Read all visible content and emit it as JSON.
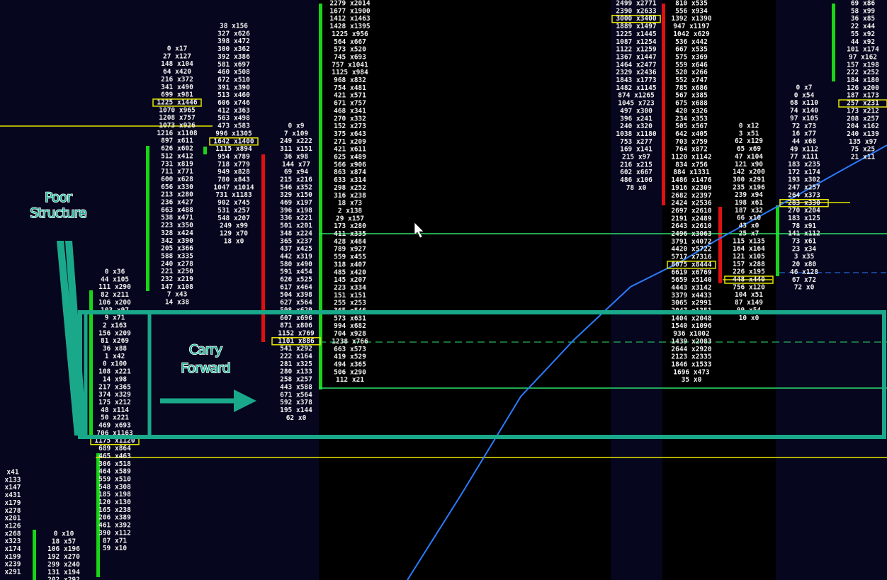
{
  "annotations": [
    "Poor\nStructure",
    "Carry\nForward"
  ],
  "columns": [
    {
      "cells": [
        "0 x17",
        "27 x127",
        "148 x104",
        "64 x420",
        "216 x372",
        "341 x490",
        "699 x981",
        "1225 x1446",
        "1070 x965",
        "1208 x757",
        "1073 x926",
        "1216 x1108",
        "897 x611",
        "626 x602",
        "512 x412",
        "731 x819",
        "711 x771",
        "600 x628",
        "656 x330",
        "213 x280",
        "236 x427",
        "663 x488",
        "538 x471",
        "223 x350",
        "328 x424",
        "342 x390",
        "205 x366",
        "588 x335",
        "240 x278",
        "221 x250",
        "232 x219",
        "147 x108",
        "7 x43",
        "14 x38"
      ]
    },
    {
      "cells": [
        "38 x156",
        "327 x626",
        "398 x472",
        "300 x362",
        "392 x386",
        "581 x697",
        "460 x508",
        "672 x510",
        "391 x390",
        "513 x460",
        "606 x746",
        "412 x363",
        "563 x498",
        "473 x583",
        "996 x1305",
        "1642 x1400",
        "1115 x894",
        "954 x789",
        "718 x779",
        "949 x828",
        "780 x843",
        "1047 x1014",
        "731 x1183",
        "902 x745",
        "531 x257",
        "548 x207",
        "249 x99",
        "129 x70",
        "18 x0"
      ]
    },
    {
      "cells": [
        "0 x9",
        "7 x109",
        "249 x222",
        "311 x151",
        "36 x98",
        "144 x77",
        "69 x94",
        "215 x216",
        "546 x352",
        "329 x150",
        "469 x197",
        "396 x198",
        "336 x221",
        "501 x201",
        "348 x224",
        "365 x237",
        "437 x425",
        "442 x319",
        "580 x490",
        "591 x454",
        "626 x525",
        "617 x464",
        "504 x398",
        "627 x564",
        "598 x629",
        "607 x696",
        "871 x806",
        "1152 x769",
        "1101 x886",
        "541 x292",
        "222 x164",
        "281 x325",
        "280 x133",
        "258 x257",
        "443 x588",
        "671 x564",
        "592 x378",
        "195 x144",
        "62 x0"
      ]
    },
    {
      "cells": [
        "2279 x2014",
        "1677 x1900",
        "1412 x1463",
        "1428 x1395",
        "1225 x956",
        "564 x667",
        "573 x520",
        "745 x693",
        "757 x1041",
        "1125 x984",
        "968 x832",
        "754 x481",
        "421 x571",
        "671 x757",
        "468 x341",
        "270 x332",
        "152 x273",
        "375 x643",
        "271 x209",
        "421 x611",
        "625 x489",
        "566 x906",
        "863 x874",
        "633 x314",
        "298 x252",
        "316 x238",
        "18 x73",
        "2 x138",
        "29 x157",
        "173 x280",
        "411 x335",
        "428 x484",
        "789 x927",
        "559 x455",
        "318 x407",
        "485 x420",
        "145 x207",
        "223 x334",
        "151 x151",
        "255 x253",
        "365 x546",
        "573 x631",
        "994 x682",
        "704 x928",
        "1238 x766",
        "663 x573",
        "419 x529",
        "494 x365",
        "506 x290",
        "112 x21"
      ]
    },
    {
      "cells": [
        "0 x36",
        "44 x105",
        "111 x290",
        "82 x211",
        "106 x200",
        "103 x97",
        "9 x71",
        "2 x163",
        "156 x209",
        "81 x269",
        "36 x88",
        "1 x42",
        "0 x100",
        "108 x221",
        "14 x98",
        "217 x365",
        "374 x329",
        "175 x212",
        "48 x114",
        "50 x221",
        "469 x693",
        "706 x1163",
        "1175 x1120",
        "689 x864",
        "465 x463",
        "306 x518",
        "464 x589",
        "559 x510",
        "548 x308",
        "185 x198",
        "120 x130",
        "165 x238",
        "206 x389",
        "461 x392",
        "390 x112",
        "87 x71",
        "59 x10"
      ]
    },
    {
      "cells": [
        "0 x10",
        "18 x57",
        "106 x196",
        "192 x270",
        "299 x240",
        "131 x194",
        "202 x292"
      ]
    },
    {
      "cells": [
        "x41",
        "x133",
        "x147",
        "x431",
        "x179",
        "x278",
        "x201",
        "x126",
        "x268",
        "x323",
        "x174",
        "x199",
        "x239",
        "x291"
      ]
    },
    {
      "cells": [
        "2499 x2771",
        "2390 x2633",
        "3000 x3400",
        "1889 x1497",
        "1225 x1445",
        "1087 x1254",
        "1122 x1259",
        "1367 x1447",
        "1464 x2477",
        "2329 x2436",
        "1843 x1773",
        "1482 x1145",
        "874 x1265",
        "1045 x723",
        "497 x300",
        "396 x241",
        "240 x320",
        "1038 x1180",
        "753 x277",
        "169 x141",
        "215 x97",
        "216 x215",
        "602 x667",
        "486 x106",
        "78 x0"
      ]
    },
    {
      "cells": [
        "810 x535",
        "556 x934",
        "1392 x1390",
        "947 x1197",
        "1042 x629",
        "536 x442",
        "667 x535",
        "575 x369",
        "559 x646",
        "520 x266",
        "552 x747",
        "785 x686",
        "567 x385",
        "675 x688",
        "420 x326",
        "234 x353",
        "505 x567",
        "642 x405",
        "703 x759",
        "764 x872",
        "1120 x1142",
        "834 x756",
        "884 x1331",
        "1486 x1476",
        "1916 x2309",
        "2682 x2397",
        "2424 x2536",
        "2697 x2610",
        "2191 x2489",
        "2643 x2610",
        "2496 x3063",
        "3791 x4072",
        "4420 x5722",
        "5717 x7316",
        "8075 x8444",
        "6619 x6769",
        "5659 x5140",
        "4443 x3142",
        "3379 x4433",
        "3065 x2991",
        "2047 x1351",
        "1404 x2048",
        "1540 x1096",
        "936 x1002",
        "1439 x2083",
        "2644 x2920",
        "2123 x2335",
        "1846 x1533",
        "1696 x473",
        "35 x0"
      ]
    },
    {
      "cells": [
        "0 x12",
        "3 x51",
        "62 x129",
        "65 x69",
        "47 x104",
        "121 x90",
        "142 x200",
        "300 x291",
        "235 x196",
        "239 x94",
        "198 x61",
        "187 x32",
        "66 x10",
        "43 x0",
        "25 x7",
        "115 x135",
        "164 x164",
        "121 x105",
        "157 x288",
        "226 x195",
        "448 x440",
        "756 x120",
        "104 x51",
        "87 x149",
        "99 x54",
        "10 x0"
      ]
    },
    {
      "cells": [
        "0 x7",
        "0 x54",
        "68 x110",
        "74 x140",
        "97 x105",
        "72 x73",
        "16 x77",
        "44 x68",
        "49 x112",
        "77 x111",
        "183 x235",
        "172 x174",
        "193 x302",
        "247 x257",
        "264 x373",
        "283 x330",
        "270 x204",
        "183 x125",
        "78 x91",
        "141 x112",
        "73 x61",
        "23 x34",
        "3 x35",
        "20 x80",
        "46 x128",
        "67 x72",
        "72 x0"
      ]
    },
    {
      "cells": [
        "69 x86",
        "58 x99",
        "36 x85",
        "22 x44",
        "55 x92",
        "44 x92",
        "101 x174",
        "97 x162",
        "157 x198",
        "222 x252",
        "184 x180",
        "126 x200",
        "187 x173",
        "257 x231",
        "173 x212",
        "208 x257",
        "204 x162",
        "240 x139",
        "135 x97",
        "75 x25",
        "21 x11"
      ]
    }
  ]
}
